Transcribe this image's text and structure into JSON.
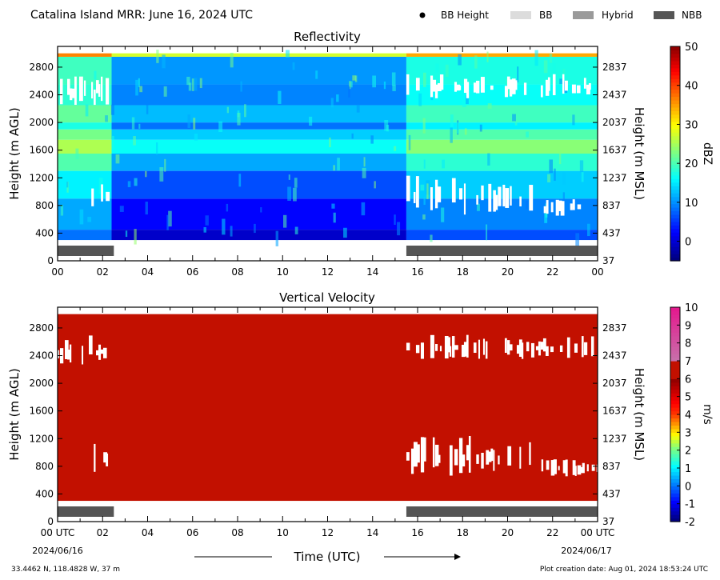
{
  "header": {
    "title": "Catalina Island MRR:  June 16, 2024 UTC",
    "legend": [
      {
        "label": "BB Height",
        "kind": "dot",
        "color": "#000000"
      },
      {
        "label": "BB",
        "kind": "box",
        "color": "#dcdcdc"
      },
      {
        "label": "Hybrid",
        "kind": "box",
        "color": "#9a9a9a"
      },
      {
        "label": "NBB",
        "kind": "box",
        "color": "#555555"
      }
    ]
  },
  "footer": {
    "location": "33.4462 N, 118.4828 W, 37 m",
    "creation": "Plot creation date: Aug 01, 2024 18:53:24 UTC",
    "xlabel": "Time (UTC)"
  },
  "chart_data": [
    {
      "type": "heatmap",
      "title": "Reflectivity",
      "xlabel": "Time (UTC)",
      "ylabel": "Height (m AGL)",
      "y2label": "Height (m MSL)",
      "xlim": [
        0,
        24
      ],
      "xticks": [
        "00",
        "02",
        "04",
        "06",
        "08",
        "10",
        "12",
        "14",
        "16",
        "18",
        "20",
        "22",
        "00"
      ],
      "ylim": [
        0,
        3100
      ],
      "yticks": [
        0,
        400,
        800,
        1200,
        1600,
        2000,
        2400,
        2800
      ],
      "y2ticks": [
        "37",
        "437",
        "837",
        "1237",
        "1637",
        "2037",
        "2437",
        "2837"
      ],
      "colorbar": {
        "label": "dBZ",
        "min": -5,
        "max": 50,
        "ticks": [
          0,
          10,
          20,
          30,
          40,
          50
        ]
      },
      "data_height_range": [
        300,
        3000
      ],
      "layers": [
        {
          "y": [
            300,
            450
          ],
          "dbz": 2
        },
        {
          "y": [
            450,
            900
          ],
          "dbz": 5
        },
        {
          "y": [
            900,
            1300
          ],
          "dbz": 9
        },
        {
          "y": [
            1300,
            1550
          ],
          "dbz": 14
        },
        {
          "y": [
            1550,
            1750
          ],
          "dbz": 19
        },
        {
          "y": [
            1750,
            1900
          ],
          "dbz": 16
        },
        {
          "y": [
            1900,
            2000
          ],
          "dbz": 11
        },
        {
          "y": [
            2000,
            2250
          ],
          "dbz": 15
        },
        {
          "y": [
            2250,
            2550
          ],
          "dbz": 12
        },
        {
          "y": [
            2550,
            2950
          ],
          "dbz": 13
        },
        {
          "y": [
            2950,
            3000
          ],
          "dbz": 30
        }
      ],
      "periods": [
        {
          "x": [
            0,
            2.4
          ],
          "dbz_offset": 6
        },
        {
          "x": [
            2.4,
            15.5
          ],
          "dbz_offset": -3
        },
        {
          "x": [
            15.5,
            24
          ],
          "dbz_offset": 4
        }
      ],
      "bb_type_bars": [
        {
          "type": "NBB",
          "x": [
            0,
            2.5
          ]
        },
        {
          "type": "NBB",
          "x": [
            15.5,
            24
          ]
        }
      ]
    },
    {
      "type": "heatmap",
      "title": "Vertical Velocity",
      "xlabel": "Time (UTC)",
      "ylabel": "Height (m AGL)",
      "y2label": "Height (m MSL)",
      "xlim": [
        0,
        24
      ],
      "xticks": [
        "00 UTC",
        "02",
        "04",
        "06",
        "08",
        "10",
        "12",
        "14",
        "16",
        "18",
        "20",
        "22",
        "00 UTC"
      ],
      "xsublabels": [
        "2024/06/16",
        "2024/06/17"
      ],
      "ylim": [
        0,
        3100
      ],
      "yticks": [
        0,
        400,
        800,
        1200,
        1600,
        2000,
        2400,
        2800
      ],
      "y2ticks": [
        "37",
        "437",
        "837",
        "1237",
        "1637",
        "2037",
        "2437",
        "2837"
      ],
      "colorbar": {
        "label": "m/s",
        "min": -2,
        "max": 10,
        "ticks": [
          -2,
          -1,
          0,
          1,
          2,
          3,
          4,
          5,
          6,
          7,
          8,
          9,
          10
        ]
      },
      "data_height_range": [
        300,
        3000
      ],
      "fill_value_ms": 6,
      "bb_type_bars": [
        {
          "type": "NBB",
          "x": [
            0,
            2.5
          ]
        },
        {
          "type": "NBB",
          "x": [
            15.5,
            24
          ]
        }
      ]
    }
  ],
  "gaps": [
    {
      "x": [
        0,
        2.2
      ],
      "y": [
        2250,
        2700
      ]
    },
    {
      "x": [
        1.5,
        2.2
      ],
      "y": [
        700,
        1200
      ]
    },
    {
      "x": [
        15.5,
        24
      ],
      "y": [
        2350,
        2700
      ]
    },
    {
      "x": [
        15.5,
        18.3
      ],
      "y": [
        650,
        1250
      ]
    },
    {
      "x": [
        18.5,
        21
      ],
      "y": [
        700,
        1150
      ]
    },
    {
      "x": [
        21.5,
        24
      ],
      "y": [
        650,
        900
      ]
    }
  ]
}
